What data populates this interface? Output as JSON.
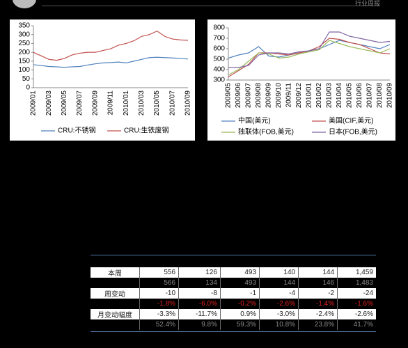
{
  "header": {
    "right": "行业周报"
  },
  "chart_data": [
    {
      "type": "line",
      "categories": [
        "2009/01",
        null,
        "2009/03",
        null,
        "2009/05",
        null,
        "2009/07",
        null,
        "2009/09",
        null,
        "2009/11",
        null,
        "2010/01",
        null,
        "2010/03",
        null,
        "2010/05",
        null,
        "2010/07",
        null,
        "2010/09"
      ],
      "ylim": [
        0,
        350
      ],
      "yticks": [
        0,
        50,
        100,
        150,
        200,
        250,
        300,
        350
      ],
      "series": [
        {
          "name": "CRU:不锈钢",
          "color": "#4f81bd",
          "values": [
            130,
            125,
            120,
            118,
            115,
            118,
            120,
            128,
            135,
            140,
            142,
            145,
            140,
            150,
            160,
            170,
            172,
            170,
            168,
            165,
            162
          ]
        },
        {
          "name": "CRU:生铁废钢",
          "color": "#c0504d",
          "values": [
            200,
            180,
            160,
            155,
            165,
            185,
            195,
            200,
            200,
            210,
            220,
            240,
            250,
            265,
            290,
            300,
            320,
            290,
            275,
            270,
            268
          ]
        }
      ]
    },
    {
      "type": "line",
      "categories": [
        "2009/05",
        "2009/06",
        "2009/07",
        "2009/08",
        "2009/09",
        "2009/10",
        "2009/11",
        "2009/12",
        "2010/01",
        "2010/02",
        "2010/03",
        "2010/04",
        "2010/05",
        "2010/06",
        "2010/07",
        "2010/08",
        "2010/09"
      ],
      "ylim": [
        300,
        800
      ],
      "yticks": [
        300,
        400,
        500,
        600,
        700,
        800
      ],
      "series": [
        {
          "name": "中国(美元)",
          "color": "#4f81bd",
          "values": [
            510,
            540,
            560,
            620,
            530,
            520,
            540,
            560,
            580,
            600,
            640,
            680,
            660,
            640,
            620,
            600,
            640
          ]
        },
        {
          "name": "美国(CIF,美元)",
          "color": "#c0504d",
          "values": [
            330,
            390,
            450,
            560,
            560,
            550,
            540,
            560,
            580,
            620,
            700,
            690,
            660,
            640,
            600,
            560,
            550
          ]
        },
        {
          "name": "独联体(FOB,美元)",
          "color": "#9bbb59",
          "values": [
            350,
            400,
            480,
            560,
            550,
            510,
            520,
            550,
            570,
            590,
            680,
            650,
            620,
            600,
            580,
            560,
            600
          ]
        },
        {
          "name": "日本(FOB,美元)",
          "color": "#8064a2",
          "values": [
            420,
            420,
            440,
            540,
            560,
            560,
            550,
            570,
            580,
            600,
            760,
            760,
            720,
            700,
            680,
            660,
            670
          ]
        }
      ]
    }
  ],
  "table": {
    "rows": [
      {
        "label": "本周",
        "cells": [
          "556",
          "126",
          "493",
          "140",
          "144",
          "1,459"
        ]
      },
      {
        "cells": [
          "566",
          "134",
          "493",
          "144",
          "146",
          "1,483"
        ]
      },
      {
        "label": "周变动",
        "cells": [
          "-10",
          "-8",
          "-1",
          "-4",
          "-2",
          "-24"
        ]
      },
      {
        "cells": [
          "-1.8%",
          "-6.0%",
          "-0.2%",
          "-2.6%",
          "-1.4%",
          "-1.6%"
        ]
      },
      {
        "label": "月变动幅度",
        "cells": [
          "-3.3%",
          "-11.7%",
          "0.9%",
          "-3.0%",
          "-2.4%",
          "-2.6%"
        ]
      },
      {
        "cells": [
          "52.4%",
          "9.8%",
          "59.3%",
          "10.8%",
          "23.8%",
          "41.7%"
        ]
      }
    ]
  }
}
